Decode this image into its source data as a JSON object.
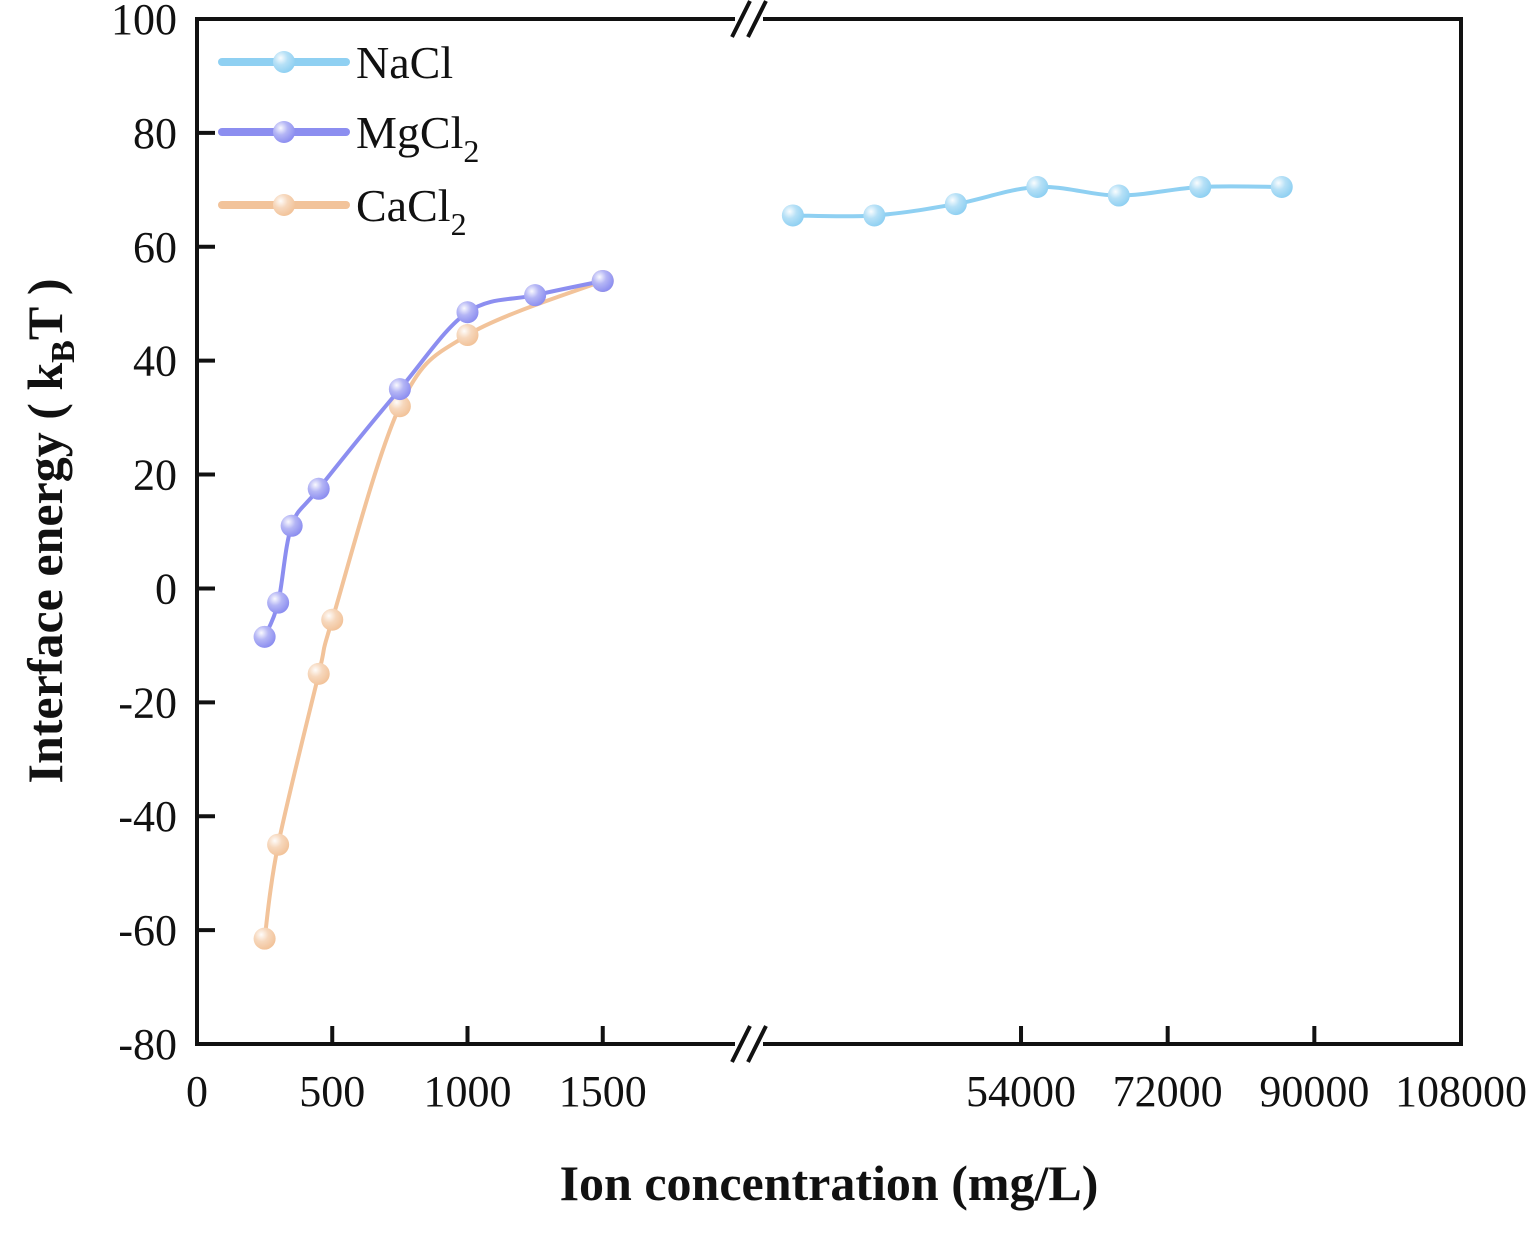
{
  "chart_data": {
    "type": "line",
    "title": "",
    "xlabel": "Ion concentration (mg/L)",
    "ylabel": "Interface energy ( kBT )",
    "ylabel_parts": {
      "open": "Interface energy ( k",
      "sub": "B",
      "close": "T )"
    },
    "ylim": [
      -80,
      100
    ],
    "yticks": [
      -80,
      -60,
      -40,
      -20,
      0,
      20,
      40,
      60,
      80,
      100
    ],
    "x_axis_break": true,
    "x_segments": [
      {
        "xlim": [
          0,
          2000
        ],
        "ticks": [
          0,
          500,
          1000,
          1500
        ]
      },
      {
        "xlim": [
          20000,
          108000
        ],
        "ticks": [
          54000,
          72000,
          90000,
          108000
        ]
      }
    ],
    "grid": false,
    "legend_position": "top-left",
    "series": [
      {
        "name": "NaCl",
        "name_base": "NaCl",
        "name_sub": "",
        "color": "#8fd0f2",
        "segment": 1,
        "x": [
          26000,
          36000,
          46000,
          56000,
          66000,
          76000,
          86000
        ],
        "y": [
          65.5,
          65.5,
          67.5,
          70.5,
          69,
          70.5,
          70.5
        ]
      },
      {
        "name": "MgCl2",
        "name_base": "MgCl",
        "name_sub": "2",
        "color": "#8c8ef0",
        "segment": 0,
        "x": [
          250,
          300,
          350,
          450,
          750,
          1000,
          1250,
          1500
        ],
        "y": [
          -8.5,
          -2.5,
          11,
          17.5,
          35,
          48.5,
          51.5,
          54
        ]
      },
      {
        "name": "CaCl2",
        "name_base": "CaCl",
        "name_sub": "2",
        "color": "#f2c39a",
        "segment": 0,
        "x": [
          250,
          300,
          450,
          500,
          750,
          1000,
          1500
        ],
        "y": [
          -61.5,
          -45,
          -15,
          -5.5,
          32,
          44.5,
          54
        ]
      }
    ]
  }
}
